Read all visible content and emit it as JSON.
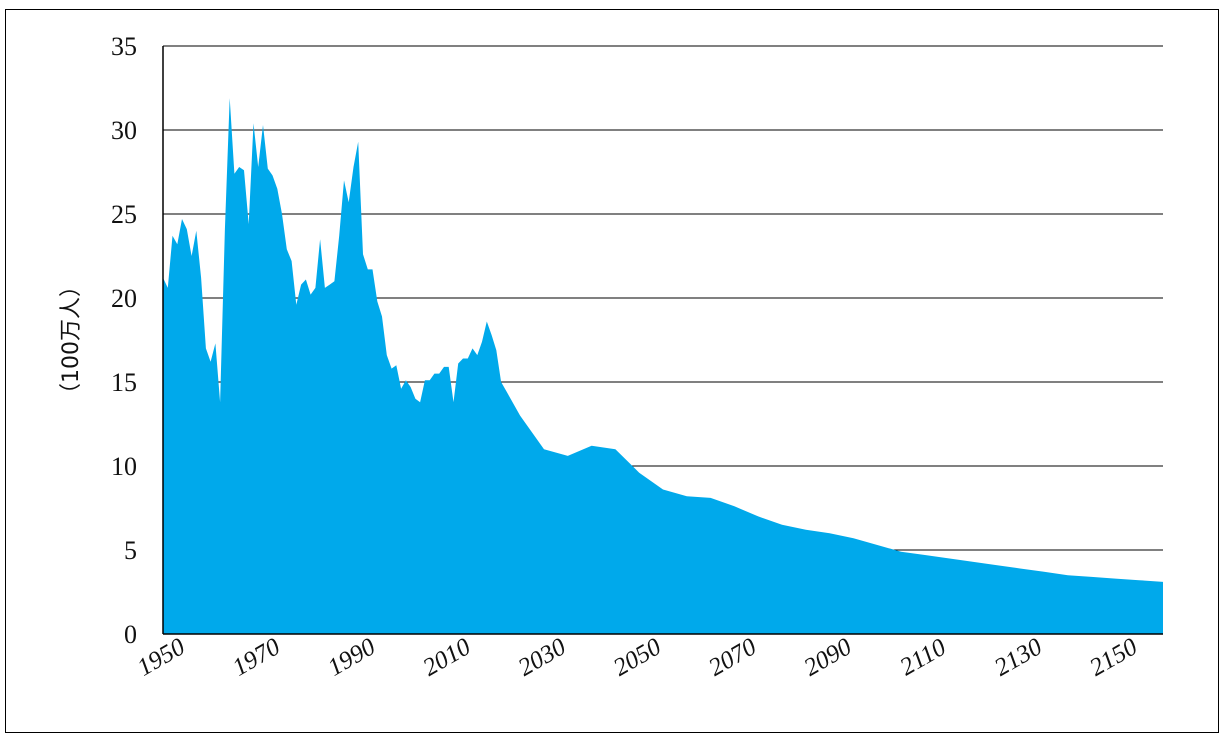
{
  "chart_data": {
    "type": "area",
    "title": "",
    "xlabel": "",
    "ylabel": "（100万人）",
    "xlim": [
      1950,
      2160
    ],
    "ylim": [
      0,
      35
    ],
    "yticks": [
      0,
      5,
      10,
      15,
      20,
      25,
      30,
      35
    ],
    "xticks": [
      1950,
      1970,
      1990,
      2010,
      2030,
      2050,
      2070,
      2090,
      2110,
      2130,
      2150
    ],
    "grid": "horizontal",
    "color": "#00a9eb",
    "series": [
      {
        "x": [
          1950,
          1951,
          1952,
          1953,
          1954,
          1955,
          1956,
          1957,
          1958,
          1959,
          1960,
          1961,
          1962,
          1963,
          1964,
          1965,
          1966,
          1967,
          1968,
          1969,
          1970,
          1971,
          1972,
          1973,
          1974,
          1975,
          1976,
          1977,
          1978,
          1979,
          1980,
          1981,
          1982,
          1983,
          1984,
          1985,
          1986,
          1987,
          1988,
          1989,
          1990,
          1991,
          1992,
          1993,
          1994,
          1995,
          1996,
          1997,
          1998,
          1999,
          2000,
          2001,
          2002,
          2003,
          2004,
          2005,
          2006,
          2007,
          2008,
          2009,
          2010,
          2011,
          2012,
          2013,
          2014,
          2015,
          2016,
          2017,
          2018,
          2019,
          2020,
          2021,
          2022,
          2025,
          2030,
          2035,
          2040,
          2045,
          2050,
          2055,
          2060,
          2065,
          2070,
          2075,
          2080,
          2085,
          2090,
          2095,
          2100,
          2105,
          2110,
          2115,
          2120,
          2125,
          2130,
          2135,
          2140,
          2145,
          2150,
          2155,
          2160
        ],
        "values": [
          21.2,
          20.6,
          23.7,
          23.2,
          24.7,
          24.1,
          22.5,
          24.0,
          21.2,
          17.0,
          16.2,
          17.3,
          13.8,
          24.1,
          31.9,
          27.4,
          27.8,
          27.6,
          24.4,
          30.4,
          27.8,
          30.3,
          27.7,
          27.3,
          26.5,
          25.0,
          22.9,
          22.2,
          19.6,
          20.8,
          21.1,
          20.2,
          20.6,
          23.5,
          20.6,
          20.8,
          21.0,
          23.7,
          27.0,
          25.7,
          27.8,
          29.3,
          22.6,
          21.7,
          21.7,
          19.8,
          18.9,
          16.6,
          15.8,
          16.0,
          14.6,
          15.1,
          14.7,
          14.0,
          13.8,
          15.1,
          15.1,
          15.5,
          15.5,
          15.9,
          15.9,
          13.8,
          16.1,
          16.4,
          16.4,
          17.0,
          16.6,
          17.4,
          18.6,
          17.8,
          16.9,
          15.0,
          14.5,
          13.0,
          11.0,
          10.6,
          11.2,
          11.0,
          9.6,
          8.6,
          8.2,
          8.1,
          7.6,
          7.0,
          6.5,
          6.2,
          6.0,
          5.7,
          5.3,
          4.9,
          4.7,
          4.5,
          4.3,
          4.1,
          3.9,
          3.7,
          3.5,
          3.4,
          3.3,
          3.2,
          3.1
        ]
      }
    ]
  }
}
